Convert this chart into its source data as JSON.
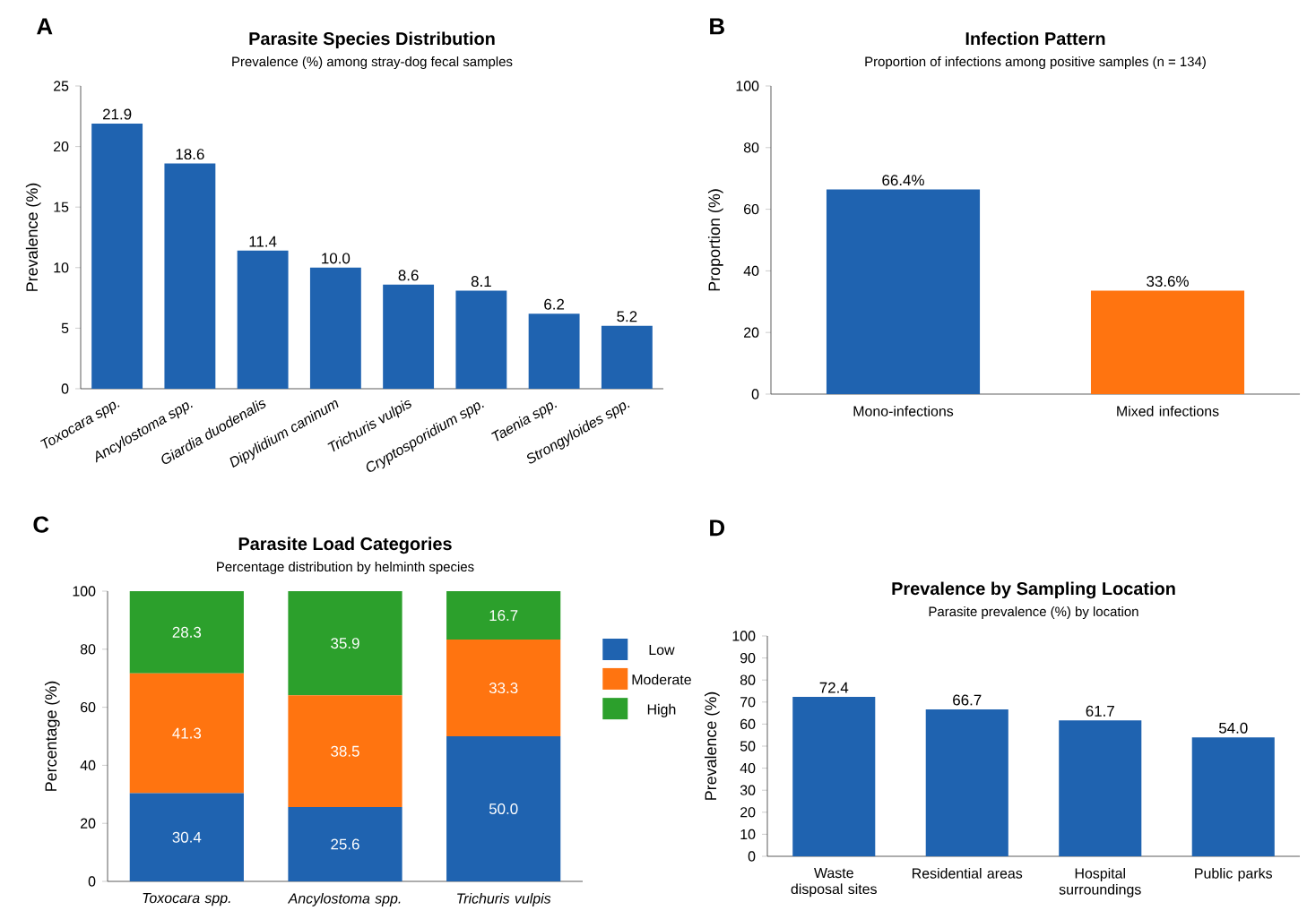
{
  "chart_data": [
    {
      "type": "bar",
      "title": "Parasite Species Distribution",
      "subtitle": "Prevalence (%) among stray-dog fecal samples",
      "ylabel": "Prevalence (%)",
      "categories": [
        "Toxocara spp.",
        "Ancylostoma spp.",
        "Giardia duodenalis",
        "Dipylidium caninum",
        "Trichuris vulpis",
        "Cryptosporidium spp.",
        "Taenia spp.",
        "Strongyloides spp."
      ],
      "values": [
        21.9,
        18.6,
        11.4,
        10.0,
        8.6,
        8.1,
        6.2,
        5.2
      ],
      "value_labels": [
        "21.9",
        "18.6",
        "11.4",
        "10.0",
        "8.6",
        "8.1",
        "6.2",
        "5.2"
      ],
      "color": "#1f63b0",
      "ylim": [
        0,
        25
      ],
      "yticks": [
        0,
        5,
        10,
        15,
        20,
        25
      ],
      "annotations": [
        "A"
      ]
    },
    {
      "type": "bar",
      "title": "Infection Pattern",
      "subtitle": "Proportion of infections among positive samples (n = 134)",
      "ylabel": "Proportion (%)",
      "categories": [
        "Mono-infections",
        "Mixed infections"
      ],
      "values": [
        66.4,
        33.6
      ],
      "colors": [
        "#1f63b0",
        "#ff7410"
      ],
      "value_labels": [
        "66.4%",
        "33.6%"
      ],
      "ylim": [
        0,
        100
      ],
      "yticks": [
        0,
        20,
        40,
        60,
        80,
        100
      ],
      "annotations": [
        "B"
      ]
    },
    {
      "type": "bar",
      "title": "Parasite Load Categories",
      "subtitle": "Percentage distribution by helminth species",
      "ylabel": "Percentage (%)",
      "categories": [
        "Toxocara spp.",
        "Ancylostoma spp.",
        "Trichuris vulpis"
      ],
      "stacked": true,
      "series": [
        {
          "name": "Low",
          "color": "#1f63b0",
          "values": [
            30.4,
            25.6,
            50.0
          ],
          "value_labels": [
            "30.4",
            "25.6",
            "50.0"
          ]
        },
        {
          "name": "Moderate",
          "color": "#ff7410",
          "values": [
            41.3,
            38.5,
            33.3
          ],
          "value_labels": [
            "41.3",
            "38.5",
            "33.3"
          ]
        },
        {
          "name": "High",
          "color": "#2ca02c",
          "values": [
            28.3,
            35.9,
            16.7
          ],
          "value_labels": [
            "28.3",
            "35.9",
            "16.7"
          ]
        }
      ],
      "ylim": [
        0,
        100
      ],
      "yticks": [
        0,
        20,
        40,
        60,
        80,
        100
      ],
      "legend": "right",
      "annotations": [
        "C"
      ]
    },
    {
      "type": "bar",
      "title": "Prevalence by Sampling Location",
      "subtitle": "Parasite prevalence (%) by location",
      "ylabel": "Prevalence (%)",
      "categories": [
        "Waste disposal sites",
        "Residential areas",
        "Hospital surroundings",
        "Public parks"
      ],
      "values": [
        72.4,
        66.7,
        61.7,
        54.0
      ],
      "value_labels": [
        "72.4",
        "66.7",
        "61.7",
        "54.0"
      ],
      "color": "#1f63b0",
      "ylim": [
        0,
        100
      ],
      "yticks": [
        0,
        10,
        20,
        30,
        40,
        50,
        60,
        70,
        80,
        90,
        100
      ],
      "annotations": [
        "D"
      ]
    }
  ]
}
